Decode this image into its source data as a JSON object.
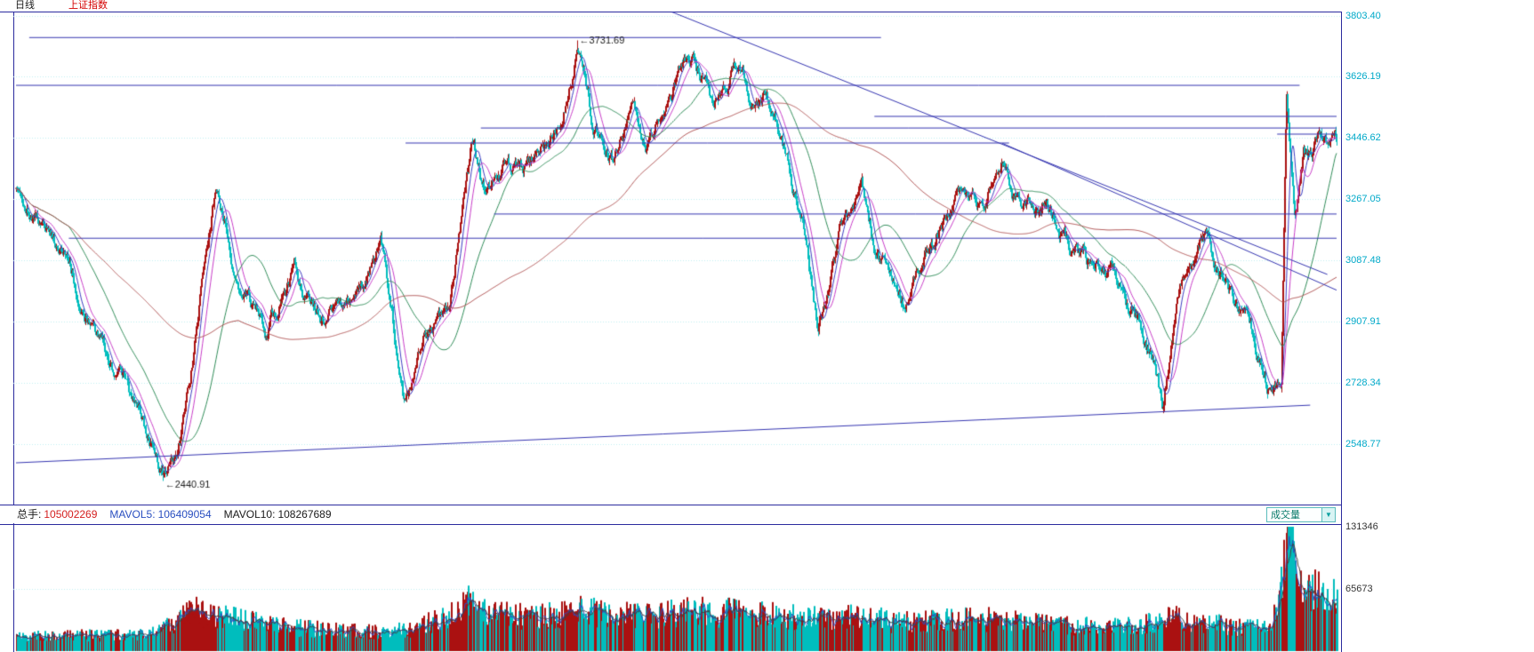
{
  "header": {
    "period": "日线",
    "symbol": "上证指数"
  },
  "price_axis": {
    "labels": [
      "3803.40",
      "3626.19",
      "3446.62",
      "3267.05",
      "3087.48",
      "2907.91",
      "2728.34",
      "2548.77"
    ]
  },
  "volume_axis": {
    "labels": [
      "131346",
      "65673"
    ]
  },
  "info_bar": {
    "zongshou_label": "总手:",
    "zongshou_value": "105002269",
    "mavol5_label": "MAVOL5:",
    "mavol5_value": "106409054",
    "mavol10_label": "MAVOL10:",
    "mavol10_value": "108267689",
    "selector_label": "成交量",
    "selector_arrow": "▼"
  },
  "annotations": {
    "arrow": "←",
    "high": "3731.69",
    "low": "2440.91"
  },
  "chart_data": {
    "type": "candlestick+volume",
    "title": "上证指数 日线",
    "legend": [],
    "x_axis": {
      "labels": []
    },
    "y_axis": {
      "ticks": [
        3803.4,
        3626.19,
        3446.62,
        3267.05,
        3087.48,
        2907.91,
        2728.34,
        2548.77
      ]
    },
    "extremes": {
      "high": 3731.69,
      "low": 2440.91
    },
    "bars": 1480,
    "seed": 1337,
    "price_anchors": [
      [
        0.0,
        3310
      ],
      [
        0.03,
        3140
      ],
      [
        0.06,
        2890
      ],
      [
        0.085,
        2690
      ],
      [
        0.114,
        2441
      ],
      [
        0.126,
        2580
      ],
      [
        0.151,
        3288
      ],
      [
        0.17,
        3030
      ],
      [
        0.19,
        2900
      ],
      [
        0.211,
        3040
      ],
      [
        0.232,
        2930
      ],
      [
        0.256,
        3005
      ],
      [
        0.276,
        3127
      ],
      [
        0.293,
        2665
      ],
      [
        0.31,
        2890
      ],
      [
        0.328,
        2930
      ],
      [
        0.345,
        3420
      ],
      [
        0.355,
        3290
      ],
      [
        0.37,
        3350
      ],
      [
        0.385,
        3330
      ],
      [
        0.4,
        3410
      ],
      [
        0.413,
        3480
      ],
      [
        0.425,
        3731.69
      ],
      [
        0.437,
        3480
      ],
      [
        0.452,
        3390
      ],
      [
        0.465,
        3520
      ],
      [
        0.478,
        3440
      ],
      [
        0.495,
        3580
      ],
      [
        0.512,
        3690
      ],
      [
        0.528,
        3520
      ],
      [
        0.545,
        3660
      ],
      [
        0.558,
        3560
      ],
      [
        0.566,
        3580
      ],
      [
        0.58,
        3450
      ],
      [
        0.596,
        3150
      ],
      [
        0.607,
        2880
      ],
      [
        0.623,
        3150
      ],
      [
        0.64,
        3290
      ],
      [
        0.655,
        3070
      ],
      [
        0.673,
        2940
      ],
      [
        0.69,
        3120
      ],
      [
        0.712,
        3280
      ],
      [
        0.73,
        3230
      ],
      [
        0.747,
        3410
      ],
      [
        0.762,
        3220
      ],
      [
        0.778,
        3260
      ],
      [
        0.795,
        3130
      ],
      [
        0.812,
        3080
      ],
      [
        0.832,
        3030
      ],
      [
        0.85,
        2920
      ],
      [
        0.862,
        2790
      ],
      [
        0.868,
        2650
      ],
      [
        0.88,
        3000
      ],
      [
        0.9,
        3150
      ],
      [
        0.916,
        3020
      ],
      [
        0.934,
        2880
      ],
      [
        0.95,
        2710
      ],
      [
        0.958,
        2760
      ],
      [
        0.962,
        3620
      ],
      [
        0.968,
        3230
      ],
      [
        0.975,
        3420
      ],
      [
        0.982,
        3380
      ],
      [
        0.99,
        3460
      ],
      [
        1.0,
        3445
      ]
    ],
    "volume_max": 131346,
    "volume_anchors": [
      [
        0.0,
        16000
      ],
      [
        0.1,
        17000
      ],
      [
        0.12,
        30000
      ],
      [
        0.135,
        42000
      ],
      [
        0.17,
        32000
      ],
      [
        0.2,
        26000
      ],
      [
        0.24,
        22000
      ],
      [
        0.28,
        20000
      ],
      [
        0.3,
        24000
      ],
      [
        0.33,
        40000
      ],
      [
        0.345,
        52000
      ],
      [
        0.36,
        38000
      ],
      [
        0.4,
        36000
      ],
      [
        0.425,
        44000
      ],
      [
        0.45,
        38000
      ],
      [
        0.48,
        36000
      ],
      [
        0.51,
        42000
      ],
      [
        0.55,
        40000
      ],
      [
        0.58,
        36000
      ],
      [
        0.61,
        34000
      ],
      [
        0.64,
        36000
      ],
      [
        0.67,
        30000
      ],
      [
        0.7,
        32000
      ],
      [
        0.73,
        34000
      ],
      [
        0.75,
        32000
      ],
      [
        0.78,
        28000
      ],
      [
        0.81,
        26000
      ],
      [
        0.84,
        26000
      ],
      [
        0.862,
        30000
      ],
      [
        0.875,
        36000
      ],
      [
        0.89,
        30000
      ],
      [
        0.91,
        28000
      ],
      [
        0.93,
        24000
      ],
      [
        0.95,
        26000
      ],
      [
        0.96,
        90000
      ],
      [
        0.963,
        131346
      ],
      [
        0.968,
        95000
      ],
      [
        0.975,
        70000
      ],
      [
        0.985,
        60000
      ],
      [
        1.0,
        62000
      ]
    ],
    "moving_averages": [
      {
        "period": 10,
        "color": "#3b3bc0"
      },
      {
        "period": 20,
        "color": "#c73bc7"
      },
      {
        "period": 60,
        "color": "#2e8b57"
      },
      {
        "period": 250,
        "color": "#b05555"
      }
    ],
    "vol_mas": [
      {
        "period": 5,
        "color": "#2a4fc0"
      },
      {
        "period": 10,
        "color": "#404040"
      }
    ],
    "candle_up_color": "#aa1111",
    "candle_down_color": "#00bdbd",
    "grid_color": "#bfeef0",
    "trendline_color": "#3434b0",
    "trendlines": [
      [
        0.01,
        3740,
        0.655,
        3740
      ],
      [
        0.0,
        3600,
        0.972,
        3600
      ],
      [
        0.65,
        3509,
        1.0,
        3509
      ],
      [
        0.352,
        3475,
        1.0,
        3475
      ],
      [
        0.295,
        3431,
        0.752,
        3431
      ],
      [
        0.955,
        3457,
        1.0,
        3457
      ],
      [
        0.362,
        3223,
        1.0,
        3223
      ],
      [
        0.04,
        3152,
        1.0,
        3152
      ],
      [
        0.0,
        2494,
        0.98,
        2663
      ],
      [
        0.496,
        3816,
        0.993,
        3046
      ],
      [
        0.747,
        3430,
        1.0,
        3000
      ]
    ]
  }
}
